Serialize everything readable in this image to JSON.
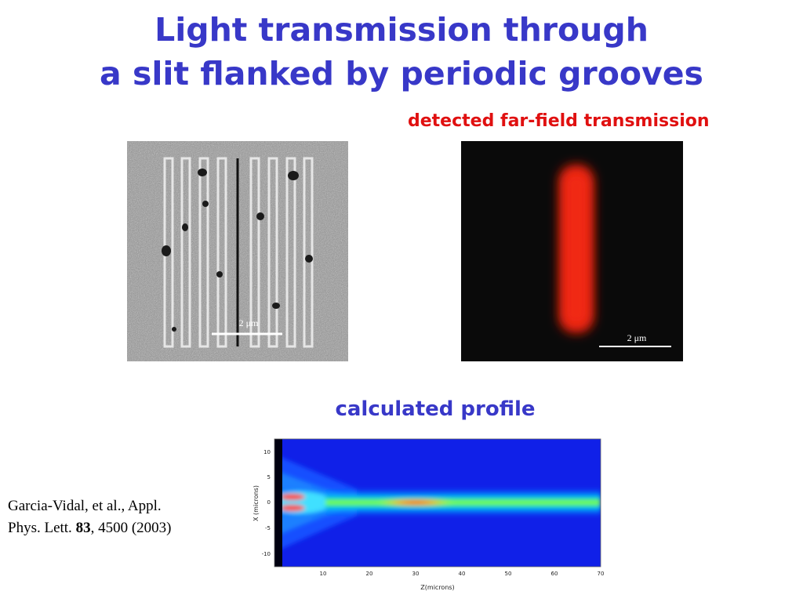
{
  "slide": {
    "title_line1": "Light transmission through",
    "title_line2": "a slit  flanked by periodic grooves",
    "farfield_label": "detected far-field transmission",
    "calc_label": "calculated profile",
    "citation": {
      "part1": "Garcia-Vidal, et al., Appl.",
      "part2": "Phys. Lett. ",
      "volume": "83",
      "part3": ", 4500 (2003)"
    }
  },
  "sem_image": {
    "scale_label": "2 μm"
  },
  "farfield_image": {
    "scale_label": "2 μm",
    "spot_color": "#e82010"
  },
  "plot": {
    "xlabel": "Z(microns)",
    "ylabel": "X (microns)",
    "xticks": [
      "10",
      "20",
      "30",
      "40",
      "50",
      "60",
      "70"
    ],
    "yticks": [
      "10",
      "5",
      "0",
      "-5",
      "-10"
    ]
  }
}
